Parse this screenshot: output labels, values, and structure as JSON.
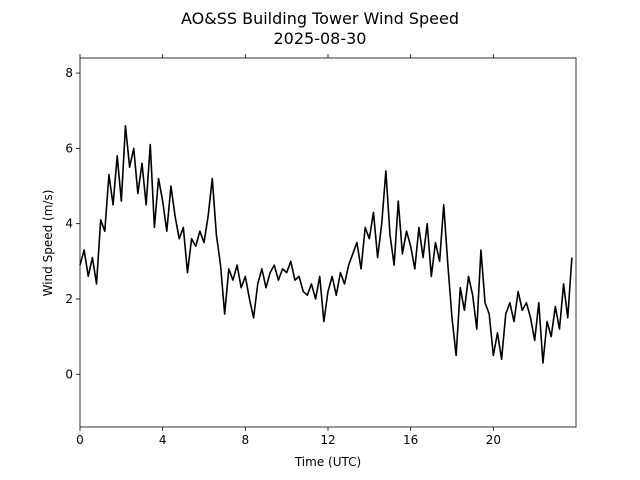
{
  "chart_data": {
    "type": "line",
    "title": "AO&SS Building Tower Wind Speed",
    "subtitle": "2025-08-30",
    "x_label": "Time (UTC)",
    "y_label": "Wind Speed (m/s)",
    "xlim": [
      0,
      24
    ],
    "ylim": [
      -1.4,
      8.4
    ],
    "xticks": [
      0,
      4,
      8,
      12,
      16,
      20
    ],
    "yticks": [
      0,
      2,
      4,
      6,
      8
    ],
    "grid": false,
    "series": [
      {
        "name": "Wind Speed",
        "color": "#000000",
        "x": [
          0,
          0.2,
          0.4,
          0.6,
          0.8,
          1,
          1.2,
          1.4,
          1.6,
          1.8,
          2,
          2.2,
          2.4,
          2.6,
          2.8,
          3,
          3.2,
          3.4,
          3.6,
          3.8,
          4,
          4.2,
          4.4,
          4.6,
          4.8,
          5,
          5.2,
          5.4,
          5.6,
          5.8,
          6,
          6.2,
          6.4,
          6.6,
          6.8,
          7,
          7.2,
          7.4,
          7.6,
          7.8,
          8,
          8.2,
          8.4,
          8.6,
          8.8,
          9,
          9.2,
          9.4,
          9.6,
          9.8,
          10,
          10.2,
          10.4,
          10.6,
          10.8,
          11,
          11.2,
          11.4,
          11.6,
          11.8,
          12,
          12.2,
          12.4,
          12.6,
          12.8,
          13,
          13.2,
          13.4,
          13.6,
          13.8,
          14,
          14.2,
          14.4,
          14.6,
          14.8,
          15,
          15.2,
          15.4,
          15.6,
          15.8,
          16,
          16.2,
          16.4,
          16.6,
          16.8,
          17,
          17.2,
          17.4,
          17.6,
          17.8,
          18,
          18.2,
          18.4,
          18.6,
          18.8,
          19,
          19.2,
          19.4,
          19.6,
          19.8,
          20,
          20.2,
          20.4,
          20.6,
          20.8,
          21,
          21.2,
          21.4,
          21.6,
          21.8,
          22,
          22.2,
          22.4,
          22.6,
          22.8,
          23,
          23.2,
          23.4,
          23.6,
          23.8
        ],
        "values": [
          2.9,
          3.3,
          2.6,
          3.1,
          2.4,
          4.1,
          3.8,
          5.3,
          4.5,
          5.8,
          4.6,
          6.6,
          5.5,
          6.0,
          4.8,
          5.6,
          4.5,
          6.1,
          3.9,
          5.2,
          4.6,
          3.8,
          5.0,
          4.2,
          3.6,
          3.9,
          2.7,
          3.6,
          3.4,
          3.8,
          3.5,
          4.2,
          5.2,
          3.7,
          2.9,
          1.6,
          2.8,
          2.5,
          2.9,
          2.3,
          2.6,
          2.0,
          1.5,
          2.4,
          2.8,
          2.3,
          2.7,
          2.9,
          2.5,
          2.8,
          2.7,
          3.0,
          2.5,
          2.6,
          2.2,
          2.1,
          2.4,
          2.0,
          2.6,
          1.4,
          2.2,
          2.6,
          2.1,
          2.7,
          2.4,
          2.9,
          3.2,
          3.5,
          2.8,
          3.9,
          3.6,
          4.3,
          3.1,
          4.0,
          5.4,
          3.7,
          2.9,
          4.6,
          3.2,
          3.8,
          3.4,
          2.8,
          3.9,
          3.1,
          4.0,
          2.6,
          3.5,
          3.0,
          4.5,
          2.9,
          1.5,
          0.5,
          2.3,
          1.7,
          2.6,
          2.1,
          1.2,
          3.3,
          1.9,
          1.6,
          0.5,
          1.1,
          0.4,
          1.6,
          1.9,
          1.4,
          2.2,
          1.7,
          1.9,
          1.5,
          0.9,
          1.9,
          0.3,
          1.4,
          1.0,
          1.8,
          1.2,
          2.4,
          1.5,
          3.1
        ]
      }
    ]
  }
}
